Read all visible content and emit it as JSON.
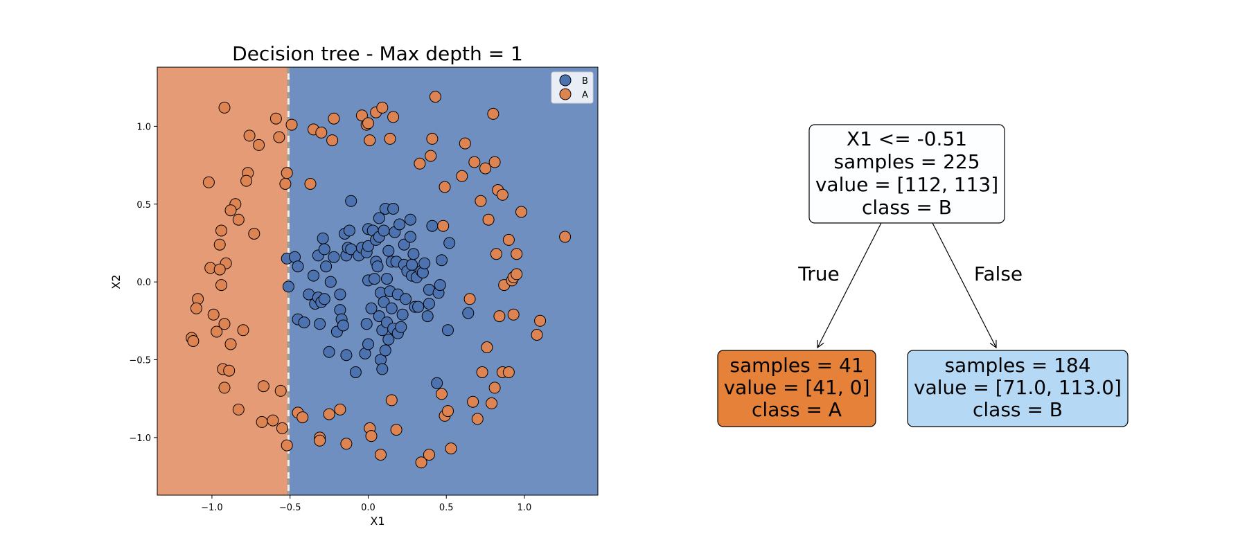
{
  "chart_data": [
    {
      "type": "scatter",
      "title": "Decision tree - Max depth = 1",
      "xlabel": "X1",
      "ylabel": "X2",
      "xlim": [
        -1.35,
        1.47
      ],
      "ylim": [
        -1.37,
        1.38
      ],
      "xticks": [
        -1.0,
        -0.5,
        0.0,
        0.5,
        1.0
      ],
      "xtick_labels": [
        "−1.0",
        "−0.5",
        "0.0",
        "0.5",
        "1.0"
      ],
      "yticks": [
        -1.0,
        -0.5,
        0.0,
        0.5,
        1.0
      ],
      "ytick_labels": [
        "−1.0",
        "−0.5",
        "0.0",
        "0.5",
        "1.0"
      ],
      "grid": false,
      "legend_position": "top-right",
      "decision_boundary": {
        "feature": "X1",
        "threshold": -0.51,
        "left_class": "A",
        "right_class": "B"
      },
      "region_colors": {
        "A": "#e59c76",
        "B": "#6f8fc0"
      },
      "series": [
        {
          "name": "B",
          "color": "#4c72b0",
          "points": [
            [
              -0.52,
              0.15
            ],
            [
              -0.47,
              0.16
            ],
            [
              -0.45,
              0.1
            ],
            [
              -0.51,
              -0.03
            ],
            [
              -0.45,
              -0.24
            ],
            [
              -0.41,
              -0.26
            ],
            [
              -0.38,
              -0.08
            ],
            [
              -0.35,
              0.04
            ],
            [
              -0.34,
              -0.14
            ],
            [
              -0.32,
              -0.1
            ],
            [
              -0.32,
              0.17
            ],
            [
              -0.31,
              -0.27
            ],
            [
              -0.3,
              -0.13
            ],
            [
              -0.29,
              0.28
            ],
            [
              -0.28,
              0.21
            ],
            [
              -0.28,
              -0.11
            ],
            [
              -0.27,
              0.1
            ],
            [
              -0.25,
              -0.45
            ],
            [
              -0.24,
              0.0
            ],
            [
              -0.22,
              0.16
            ],
            [
              -0.2,
              -0.32
            ],
            [
              -0.18,
              -0.08
            ],
            [
              -0.18,
              -0.18
            ],
            [
              -0.17,
              -0.24
            ],
            [
              -0.16,
              -0.28
            ],
            [
              -0.15,
              0.31
            ],
            [
              -0.14,
              -0.47
            ],
            [
              -0.14,
              0.17
            ],
            [
              -0.13,
              0.22
            ],
            [
              -0.12,
              0.33
            ],
            [
              -0.11,
              0.21
            ],
            [
              -0.11,
              0.52
            ],
            [
              -0.08,
              -0.58
            ],
            [
              -0.06,
              0.17
            ],
            [
              -0.04,
              0.22
            ],
            [
              -0.02,
              -0.46
            ],
            [
              -0.01,
              0.19
            ],
            [
              -0.01,
              -0.27
            ],
            [
              0.0,
              0.34
            ],
            [
              0.0,
              -0.4
            ],
            [
              0.0,
              0.01
            ],
            [
              0.0,
              0.23
            ],
            [
              0.02,
              -0.17
            ],
            [
              0.03,
              0.33
            ],
            [
              0.04,
              0.02
            ],
            [
              0.05,
              0.27
            ],
            [
              0.05,
              0.13
            ],
            [
              0.06,
              0.1
            ],
            [
              0.07,
              0.41
            ],
            [
              0.07,
              -0.22
            ],
            [
              0.07,
              0.29
            ],
            [
              0.08,
              -0.07
            ],
            [
              0.08,
              -0.5
            ],
            [
              0.09,
              -0.56
            ],
            [
              0.09,
              -0.31
            ],
            [
              0.1,
              -0.13
            ],
            [
              0.1,
              0.33
            ],
            [
              0.11,
              0.47
            ],
            [
              0.11,
              -0.44
            ],
            [
              0.12,
              0.02
            ],
            [
              0.12,
              -0.26
            ],
            [
              0.13,
              -0.37
            ],
            [
              0.13,
              0.2
            ],
            [
              0.14,
              -0.06
            ],
            [
              0.15,
              0.13
            ],
            [
              0.15,
              -0.17
            ],
            [
              0.16,
              0.47
            ],
            [
              0.16,
              -0.3
            ],
            [
              0.17,
              0.32
            ],
            [
              0.18,
              0.13
            ],
            [
              0.19,
              -0.08
            ],
            [
              0.19,
              -0.33
            ],
            [
              0.2,
              0.37
            ],
            [
              0.21,
              -0.29
            ],
            [
              0.22,
              -0.21
            ],
            [
              0.23,
              0.24
            ],
            [
              0.23,
              0.11
            ],
            [
              0.24,
              -0.11
            ],
            [
              0.25,
              0.07
            ],
            [
              0.27,
              0.4
            ],
            [
              0.27,
              0.29
            ],
            [
              0.28,
              0.11
            ],
            [
              0.28,
              0.04
            ],
            [
              0.29,
              0.18
            ],
            [
              0.3,
              -0.16
            ],
            [
              0.31,
              0.03
            ],
            [
              0.32,
              -0.16
            ],
            [
              0.34,
              0.07
            ],
            [
              0.35,
              0.06
            ],
            [
              0.36,
              0.12
            ],
            [
              0.38,
              -0.22
            ],
            [
              0.39,
              -0.14
            ],
            [
              0.39,
              -0.05
            ],
            [
              0.41,
              0.36
            ],
            [
              0.44,
              -0.65
            ],
            [
              0.45,
              -0.07
            ],
            [
              0.46,
              -0.02
            ],
            [
              0.47,
              0.14
            ],
            [
              0.51,
              -0.31
            ],
            [
              0.52,
              0.25
            ],
            [
              0.64,
              -0.2
            ]
          ]
        },
        {
          "name": "A",
          "color": "#dd8452",
          "points": [
            [
              -0.92,
              1.12
            ],
            [
              -0.59,
              1.05
            ],
            [
              -0.49,
              1.01
            ],
            [
              -0.76,
              0.94
            ],
            [
              -0.57,
              0.93
            ],
            [
              -0.7,
              0.88
            ],
            [
              -0.52,
              0.7
            ],
            [
              -0.77,
              0.7
            ],
            [
              -0.78,
              0.65
            ],
            [
              -1.02,
              0.64
            ],
            [
              -0.53,
              0.63
            ],
            [
              -0.85,
              0.5
            ],
            [
              -0.88,
              0.46
            ],
            [
              -0.83,
              0.4
            ],
            [
              -0.94,
              0.33
            ],
            [
              -0.73,
              0.31
            ],
            [
              -0.95,
              0.24
            ],
            [
              -0.91,
              0.12
            ],
            [
              -1.01,
              0.09
            ],
            [
              -0.95,
              0.08
            ],
            [
              -0.94,
              -0.02
            ],
            [
              -1.09,
              -0.11
            ],
            [
              -1.1,
              -0.17
            ],
            [
              -0.99,
              -0.21
            ],
            [
              -0.92,
              -0.27
            ],
            [
              -0.97,
              -0.32
            ],
            [
              -0.8,
              -0.31
            ],
            [
              -1.13,
              -0.36
            ],
            [
              -1.12,
              -0.38
            ],
            [
              -0.88,
              -0.4
            ],
            [
              -0.93,
              -0.56
            ],
            [
              -0.89,
              -0.57
            ],
            [
              -0.92,
              -0.68
            ],
            [
              -0.67,
              -0.67
            ],
            [
              -0.56,
              -0.7
            ],
            [
              -0.83,
              -0.82
            ],
            [
              -0.68,
              -0.9
            ],
            [
              -0.61,
              -0.89
            ],
            [
              -0.55,
              -0.94
            ],
            [
              -0.52,
              -1.05
            ],
            [
              -0.45,
              -0.84
            ],
            [
              -0.42,
              -0.87
            ],
            [
              -0.31,
              -1.0
            ],
            [
              -0.31,
              -1.02
            ],
            [
              -0.25,
              -0.85
            ],
            [
              -0.18,
              -0.82
            ],
            [
              -0.14,
              -1.04
            ],
            [
              -0.37,
              0.63
            ],
            [
              -0.35,
              0.98
            ],
            [
              -0.3,
              0.96
            ],
            [
              -0.23,
              0.91
            ],
            [
              -0.22,
              1.05
            ],
            [
              -0.04,
              1.07
            ],
            [
              -0.01,
              1.01
            ],
            [
              0.0,
              1.02
            ],
            [
              0.01,
              0.91
            ],
            [
              0.05,
              1.09
            ],
            [
              0.09,
              1.12
            ],
            [
              0.14,
              0.92
            ],
            [
              0.16,
              1.06
            ],
            [
              0.43,
              1.19
            ],
            [
              0.33,
              0.76
            ],
            [
              0.4,
              0.81
            ],
            [
              0.41,
              0.92
            ],
            [
              0.49,
              0.61
            ],
            [
              0.48,
              0.36
            ],
            [
              0.6,
              0.68
            ],
            [
              0.62,
              0.89
            ],
            [
              0.68,
              0.77
            ],
            [
              0.72,
              0.52
            ],
            [
              0.75,
              0.73
            ],
            [
              0.77,
              0.4
            ],
            [
              0.8,
              1.08
            ],
            [
              0.81,
              0.77
            ],
            [
              0.82,
              0.18
            ],
            [
              0.83,
              0.59
            ],
            [
              0.86,
              0.56
            ],
            [
              0.87,
              -0.02
            ],
            [
              0.9,
              0.27
            ],
            [
              0.92,
              0.01
            ],
            [
              0.93,
              0.03
            ],
            [
              0.95,
              0.05
            ],
            [
              0.95,
              0.18
            ],
            [
              0.98,
              0.45
            ],
            [
              0.93,
              -0.21
            ],
            [
              0.84,
              -0.22
            ],
            [
              0.76,
              -0.42
            ],
            [
              0.65,
              -0.11
            ],
            [
              0.73,
              -0.58
            ],
            [
              0.81,
              -0.68
            ],
            [
              0.86,
              -0.58
            ],
            [
              0.9,
              -0.58
            ],
            [
              0.67,
              -0.77
            ],
            [
              0.7,
              -0.88
            ],
            [
              0.79,
              -0.78
            ],
            [
              1.08,
              -0.34
            ],
            [
              1.1,
              -0.25
            ],
            [
              1.26,
              0.29
            ],
            [
              0.47,
              -0.72
            ],
            [
              0.49,
              -0.86
            ],
            [
              0.51,
              -0.83
            ],
            [
              0.53,
              -1.07
            ],
            [
              0.39,
              -1.11
            ],
            [
              0.34,
              -1.16
            ],
            [
              0.15,
              -0.76
            ],
            [
              0.18,
              -0.95
            ],
            [
              0.08,
              -1.11
            ],
            [
              0.01,
              -0.94
            ],
            [
              0.02,
              -0.99
            ]
          ]
        }
      ]
    },
    {
      "type": "tree",
      "nodes": [
        {
          "id": "root",
          "lines": [
            "X1 <= -0.51",
            "samples = 225",
            "value = [112, 113]",
            "class = B"
          ],
          "fill": "#fdfeff"
        },
        {
          "id": "left",
          "lines": [
            "samples = 41",
            "value = [41, 0]",
            "class = A"
          ],
          "fill": "#e58139"
        },
        {
          "id": "right",
          "lines": [
            "samples = 184",
            "value = [71.0, 113.0]",
            "class = B"
          ],
          "fill": "#b5d9f5"
        }
      ],
      "edges": [
        {
          "from": "root",
          "to": "left",
          "label": "True"
        },
        {
          "from": "root",
          "to": "right",
          "label": "False"
        }
      ]
    }
  ]
}
